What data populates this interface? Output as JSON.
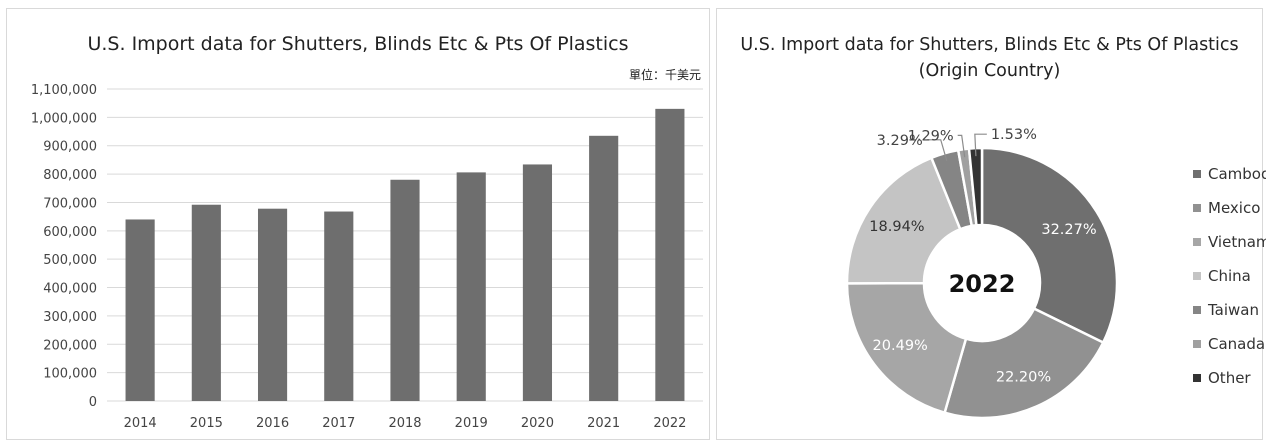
{
  "bar_chart": {
    "title": "U.S. Import data for Shutters, Blinds Etc & Pts Of Plastics",
    "unit": "單位：千美元",
    "y_ticks": [
      "0",
      "100,000",
      "200,000",
      "300,000",
      "400,000",
      "500,000",
      "600,000",
      "700,000",
      "800,000",
      "900,000",
      "1,000,000",
      "1,100,000"
    ]
  },
  "pie_chart": {
    "title_line1": "U.S. Import data for Shutters, Blinds Etc & Pts Of Plastics",
    "title_line2": "(Origin Country)",
    "center_label": "2022"
  },
  "chart_data": [
    {
      "type": "bar",
      "title": "U.S. Import data for Shutters, Blinds Etc & Pts Of Plastics",
      "unit": "單位：千美元",
      "categories": [
        "2014",
        "2015",
        "2016",
        "2017",
        "2018",
        "2019",
        "2020",
        "2021",
        "2022"
      ],
      "values": [
        640000,
        692000,
        678000,
        668000,
        780000,
        806000,
        834000,
        935000,
        1030000
      ],
      "ylim": [
        0,
        1100000
      ],
      "ytick_step": 100000,
      "grid": true,
      "color": "#6e6e6e"
    },
    {
      "type": "pie",
      "title": "U.S. Import data for Shutters, Blinds Etc & Pts Of Plastics (Origin Country)",
      "center_label": "2022",
      "donut": true,
      "legend_position": "right",
      "labels": [
        "Cambodia",
        "Mexico",
        "Vietnam",
        "China",
        "Taiwan",
        "Canada",
        "Other"
      ],
      "values": [
        32.27,
        22.2,
        20.49,
        18.94,
        3.29,
        1.29,
        1.53
      ],
      "value_labels": [
        "32.27%",
        "22.20%",
        "20.49%",
        "18.94%",
        "3.29%",
        "1.29%",
        "1.53%"
      ],
      "colors": [
        "#6f6f6f",
        "#919191",
        "#a6a6a6",
        "#c4c4c4",
        "#858585",
        "#a0a0a0",
        "#333333"
      ]
    }
  ]
}
